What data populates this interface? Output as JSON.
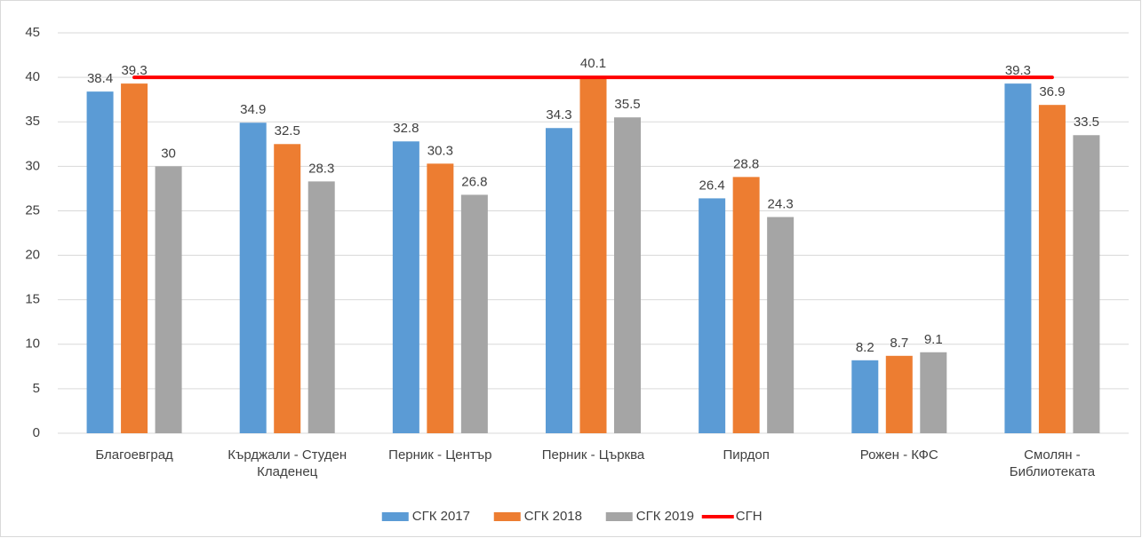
{
  "chart_data": {
    "type": "bar",
    "categories": [
      "Благоевград",
      "Кърджали - Студен Кладенец",
      "Перник - Център",
      "Перник - Църква",
      "Пирдоп",
      "Рожен - КФС",
      "Смолян - Библиотеката"
    ],
    "series": [
      {
        "name": "СГК 2017",
        "color": "#5b9bd5",
        "values": [
          38.4,
          34.9,
          32.8,
          34.3,
          26.4,
          8.2,
          39.3
        ]
      },
      {
        "name": "СГК 2018",
        "color": "#ed7d31",
        "values": [
          39.3,
          32.5,
          30.3,
          40.1,
          28.8,
          8.7,
          36.9
        ]
      },
      {
        "name": "СГК 2019",
        "color": "#a5a5a5",
        "values": [
          30,
          28.3,
          26.8,
          35.5,
          24.3,
          9.1,
          33.5
        ]
      },
      {
        "name": "СГН",
        "color": "#ff0000",
        "type": "line",
        "values": [
          40,
          40,
          40,
          40,
          40,
          40,
          40
        ]
      }
    ],
    "ylim": [
      0,
      45
    ],
    "yticks": [
      0,
      5,
      10,
      15,
      20,
      25,
      30,
      35,
      40,
      45
    ],
    "grid": true,
    "legend": "bottom"
  }
}
